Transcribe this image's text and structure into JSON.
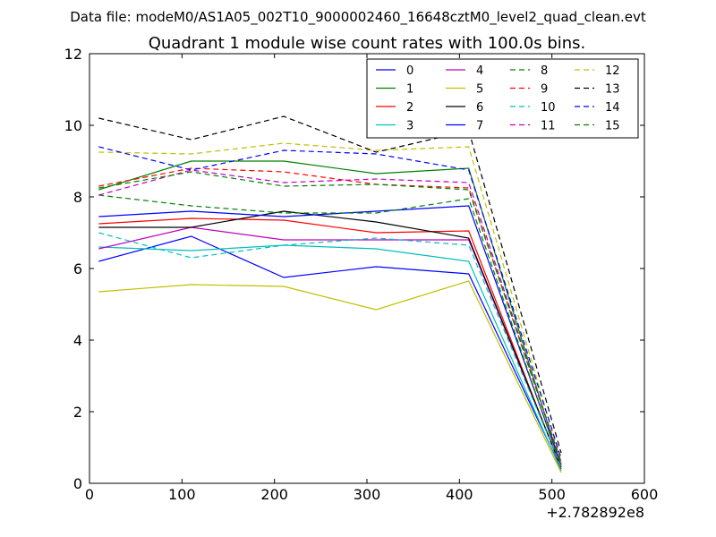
{
  "chart_data": {
    "type": "line",
    "suptitle": "Data file: modeM0/AS1A05_002T10_9000002460_16648cztM0_level2_quad_clean.evt",
    "title": "Quadrant 1 module wise count rates with 100.0s bins.",
    "xlabel": "",
    "ylabel": "",
    "x_offset_label": "+2.782892e8",
    "xlim": [
      0,
      600
    ],
    "ylim": [
      0,
      12
    ],
    "x_ticks": [
      "0",
      "100",
      "200",
      "300",
      "400",
      "500",
      "600"
    ],
    "y_ticks": [
      "0",
      "2",
      "4",
      "6",
      "8",
      "10",
      "12"
    ],
    "x": [
      10,
      110,
      210,
      310,
      410,
      510
    ],
    "series": [
      {
        "name": "0",
        "color": "#0000ff",
        "style": "solid",
        "values": [
          6.2,
          6.9,
          5.75,
          6.05,
          5.85,
          0.4
        ]
      },
      {
        "name": "1",
        "color": "#008000",
        "style": "solid",
        "values": [
          8.2,
          9.0,
          9.0,
          8.65,
          8.8,
          0.45
        ]
      },
      {
        "name": "2",
        "color": "#ff0000",
        "style": "solid",
        "values": [
          7.25,
          7.4,
          7.35,
          7.0,
          7.05,
          0.4
        ]
      },
      {
        "name": "3",
        "color": "#00bfbf",
        "style": "solid",
        "values": [
          6.6,
          6.5,
          6.65,
          6.55,
          6.2,
          0.35
        ]
      },
      {
        "name": "4",
        "color": "#bf00bf",
        "style": "solid",
        "values": [
          6.55,
          7.15,
          6.8,
          6.8,
          6.8,
          0.45
        ]
      },
      {
        "name": "5",
        "color": "#bfbf00",
        "style": "solid",
        "values": [
          5.35,
          5.55,
          5.5,
          4.85,
          5.65,
          0.3
        ]
      },
      {
        "name": "6",
        "color": "#000000",
        "style": "solid",
        "values": [
          7.15,
          7.15,
          7.6,
          7.3,
          6.85,
          0.45
        ]
      },
      {
        "name": "7",
        "color": "#0000ff",
        "style": "solid",
        "values": [
          7.45,
          7.6,
          7.45,
          7.6,
          7.75,
          0.5
        ]
      },
      {
        "name": "8",
        "color": "#008000",
        "style": "dashed",
        "values": [
          8.05,
          7.75,
          7.55,
          7.55,
          7.95,
          0.45
        ]
      },
      {
        "name": "9",
        "color": "#ff0000",
        "style": "dashed",
        "values": [
          8.3,
          8.8,
          8.7,
          8.35,
          8.25,
          0.55
        ]
      },
      {
        "name": "10",
        "color": "#00bfbf",
        "style": "dashed",
        "values": [
          7.0,
          6.3,
          6.65,
          6.85,
          6.65,
          0.45
        ]
      },
      {
        "name": "11",
        "color": "#bf00bf",
        "style": "dashed",
        "values": [
          8.05,
          8.75,
          8.4,
          8.5,
          8.4,
          0.55
        ]
      },
      {
        "name": "12",
        "color": "#bfbf00",
        "style": "dashed",
        "values": [
          9.25,
          9.2,
          9.5,
          9.3,
          9.4,
          0.6
        ]
      },
      {
        "name": "13",
        "color": "#000000",
        "style": "dashed",
        "values": [
          10.2,
          9.6,
          10.25,
          9.25,
          9.85,
          0.85
        ]
      },
      {
        "name": "14",
        "color": "#0000ff",
        "style": "dashed",
        "values": [
          9.4,
          8.75,
          9.3,
          9.2,
          8.75,
          0.7
        ]
      },
      {
        "name": "15",
        "color": "#008000",
        "style": "dashed",
        "values": [
          8.25,
          8.7,
          8.3,
          8.35,
          8.2,
          0.6
        ]
      }
    ],
    "legend_position": "top-right",
    "legend_columns": 4,
    "grid": false
  }
}
